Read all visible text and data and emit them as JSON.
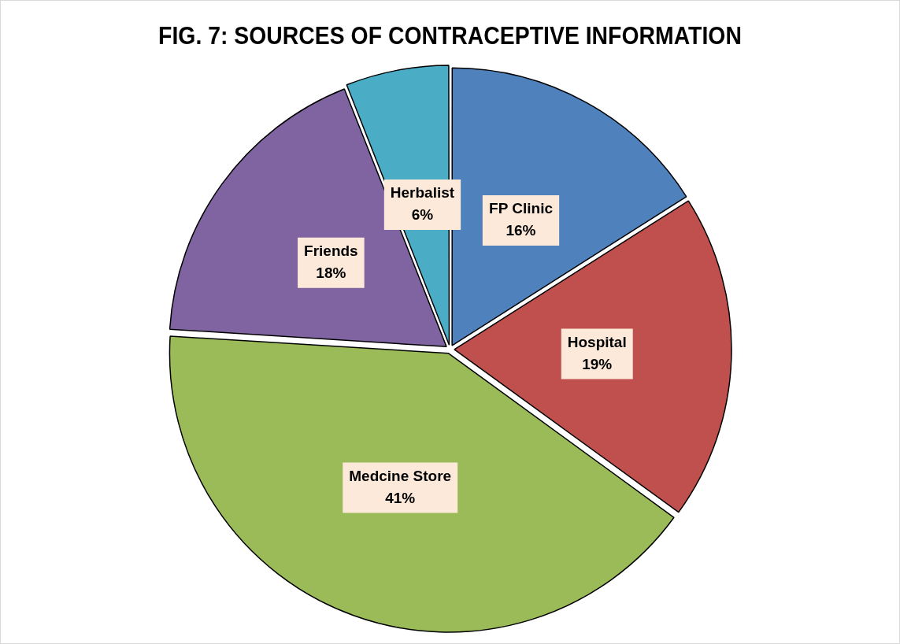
{
  "chart_data": {
    "type": "pie",
    "title": "FIG. 7: SOURCES OF CONTRACEPTIVE INFORMATION",
    "categories": [
      "FP Clinic",
      "Hospital",
      "Medcine Store",
      "Friends",
      "Herbalist"
    ],
    "values": [
      16,
      19,
      41,
      18,
      6
    ],
    "colors": [
      "#4f81bd",
      "#c0504d",
      "#9bbb59",
      "#8064a2",
      "#4bacc6"
    ],
    "value_labels": [
      "16%",
      "19%",
      "41%",
      "18%",
      "6%"
    ],
    "legend": false
  }
}
